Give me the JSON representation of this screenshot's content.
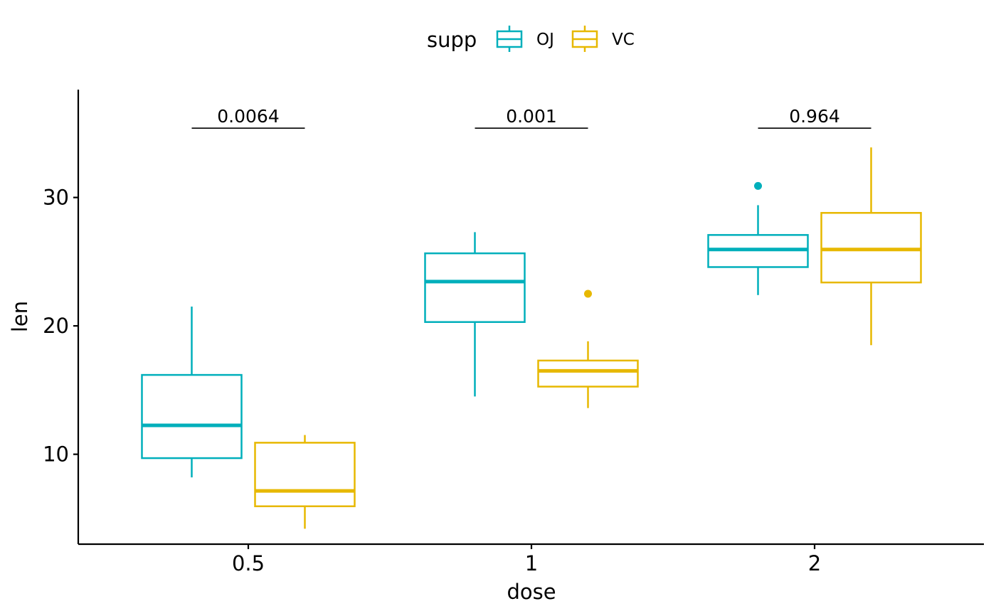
{
  "chart_data": {
    "type": "boxplot",
    "xlabel": "dose",
    "ylabel": "len",
    "categories": [
      "0.5",
      "1",
      "2"
    ],
    "ylim": [
      3.0,
      38.4
    ],
    "yticks": [
      10,
      20,
      30
    ],
    "grid": false,
    "legend": {
      "position": "top",
      "title": "supp",
      "entries": [
        {
          "label": "OJ",
          "color": "#00AFBB"
        },
        {
          "label": "VC",
          "color": "#E7B800"
        }
      ]
    },
    "series": [
      {
        "name": "OJ",
        "color": "#00AFBB",
        "boxes": [
          {
            "category": "0.5",
            "min": 8.2,
            "q1": 9.7,
            "median": 12.25,
            "q3": 16.18,
            "max": 21.5,
            "outliers": []
          },
          {
            "category": "1",
            "min": 14.5,
            "q1": 20.3,
            "median": 23.45,
            "q3": 25.65,
            "max": 27.3,
            "outliers": []
          },
          {
            "category": "2",
            "min": 22.4,
            "q1": 24.58,
            "median": 25.95,
            "q3": 27.08,
            "max": 29.4,
            "outliers": [
              30.9
            ]
          }
        ]
      },
      {
        "name": "VC",
        "color": "#E7B800",
        "boxes": [
          {
            "category": "0.5",
            "min": 4.2,
            "q1": 5.95,
            "median": 7.15,
            "q3": 10.9,
            "max": 11.5,
            "outliers": []
          },
          {
            "category": "1",
            "min": 13.6,
            "q1": 15.27,
            "median": 16.5,
            "q3": 17.3,
            "max": 18.8,
            "outliers": [
              22.5
            ]
          },
          {
            "category": "2",
            "min": 18.5,
            "q1": 23.38,
            "median": 25.95,
            "q3": 28.8,
            "max": 33.9,
            "outliers": []
          }
        ]
      }
    ],
    "annotations": [
      {
        "category": "0.5",
        "label": "0.0064",
        "y": 35.4
      },
      {
        "category": "1",
        "label": "0.001",
        "y": 35.4
      },
      {
        "category": "2",
        "label": "0.964",
        "y": 35.4
      }
    ]
  }
}
